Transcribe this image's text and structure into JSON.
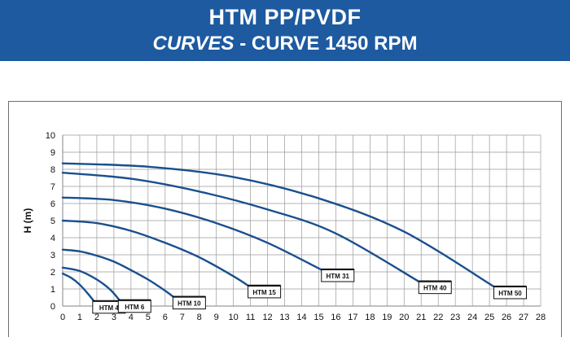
{
  "header": {
    "title": "HTM PP/PVDF",
    "subtitle_italic": "CURVES",
    "subtitle_rest": " - CURVE 1450 RPM"
  },
  "colors": {
    "banner": "#1d5aa0",
    "curve": "#1a4f8e",
    "grid": "#9a9a9a"
  },
  "chart_data": {
    "type": "line",
    "title": "",
    "xlabel": "",
    "ylabel": "H (m)",
    "xlim": [
      0,
      28
    ],
    "ylim": [
      0,
      10
    ],
    "x_ticks": [
      0,
      1,
      2,
      3,
      4,
      5,
      6,
      7,
      8,
      9,
      10,
      11,
      12,
      13,
      14,
      15,
      16,
      17,
      18,
      19,
      20,
      21,
      22,
      23,
      24,
      25,
      26,
      27,
      28
    ],
    "y_ticks": [
      0,
      1,
      2,
      3,
      4,
      5,
      6,
      7,
      8,
      9,
      10
    ],
    "grid": true,
    "series": [
      {
        "name": "HTM 4",
        "x": [
          0,
          0.5,
          1.0,
          1.5,
          1.9
        ],
        "y": [
          1.9,
          1.65,
          1.25,
          0.7,
          0.2
        ]
      },
      {
        "name": "HTM 6",
        "x": [
          0,
          1,
          2,
          2.8,
          3.4
        ],
        "y": [
          2.25,
          2.05,
          1.55,
          0.95,
          0.25
        ]
      },
      {
        "name": "HTM 10",
        "x": [
          0,
          1,
          2,
          3,
          4,
          5,
          6,
          6.6
        ],
        "y": [
          3.3,
          3.2,
          2.95,
          2.6,
          2.1,
          1.55,
          0.9,
          0.45
        ]
      },
      {
        "name": "HTM 15",
        "x": [
          0,
          2,
          4,
          6,
          8,
          10,
          11
        ],
        "y": [
          5.0,
          4.85,
          4.4,
          3.7,
          2.85,
          1.75,
          1.1
        ]
      },
      {
        "name": "HTM 31",
        "x": [
          0,
          3,
          6,
          9,
          12,
          15.3
        ],
        "y": [
          6.35,
          6.2,
          5.7,
          4.85,
          3.7,
          2.05
        ]
      },
      {
        "name": "HTM 40",
        "x": [
          0,
          4,
          8,
          12,
          16,
          21
        ],
        "y": [
          7.8,
          7.45,
          6.7,
          5.65,
          4.25,
          1.35
        ]
      },
      {
        "name": "HTM 50",
        "x": [
          0,
          5,
          10,
          15,
          20,
          25.4
        ],
        "y": [
          8.35,
          8.15,
          7.55,
          6.3,
          4.35,
          1.05
        ]
      }
    ]
  }
}
